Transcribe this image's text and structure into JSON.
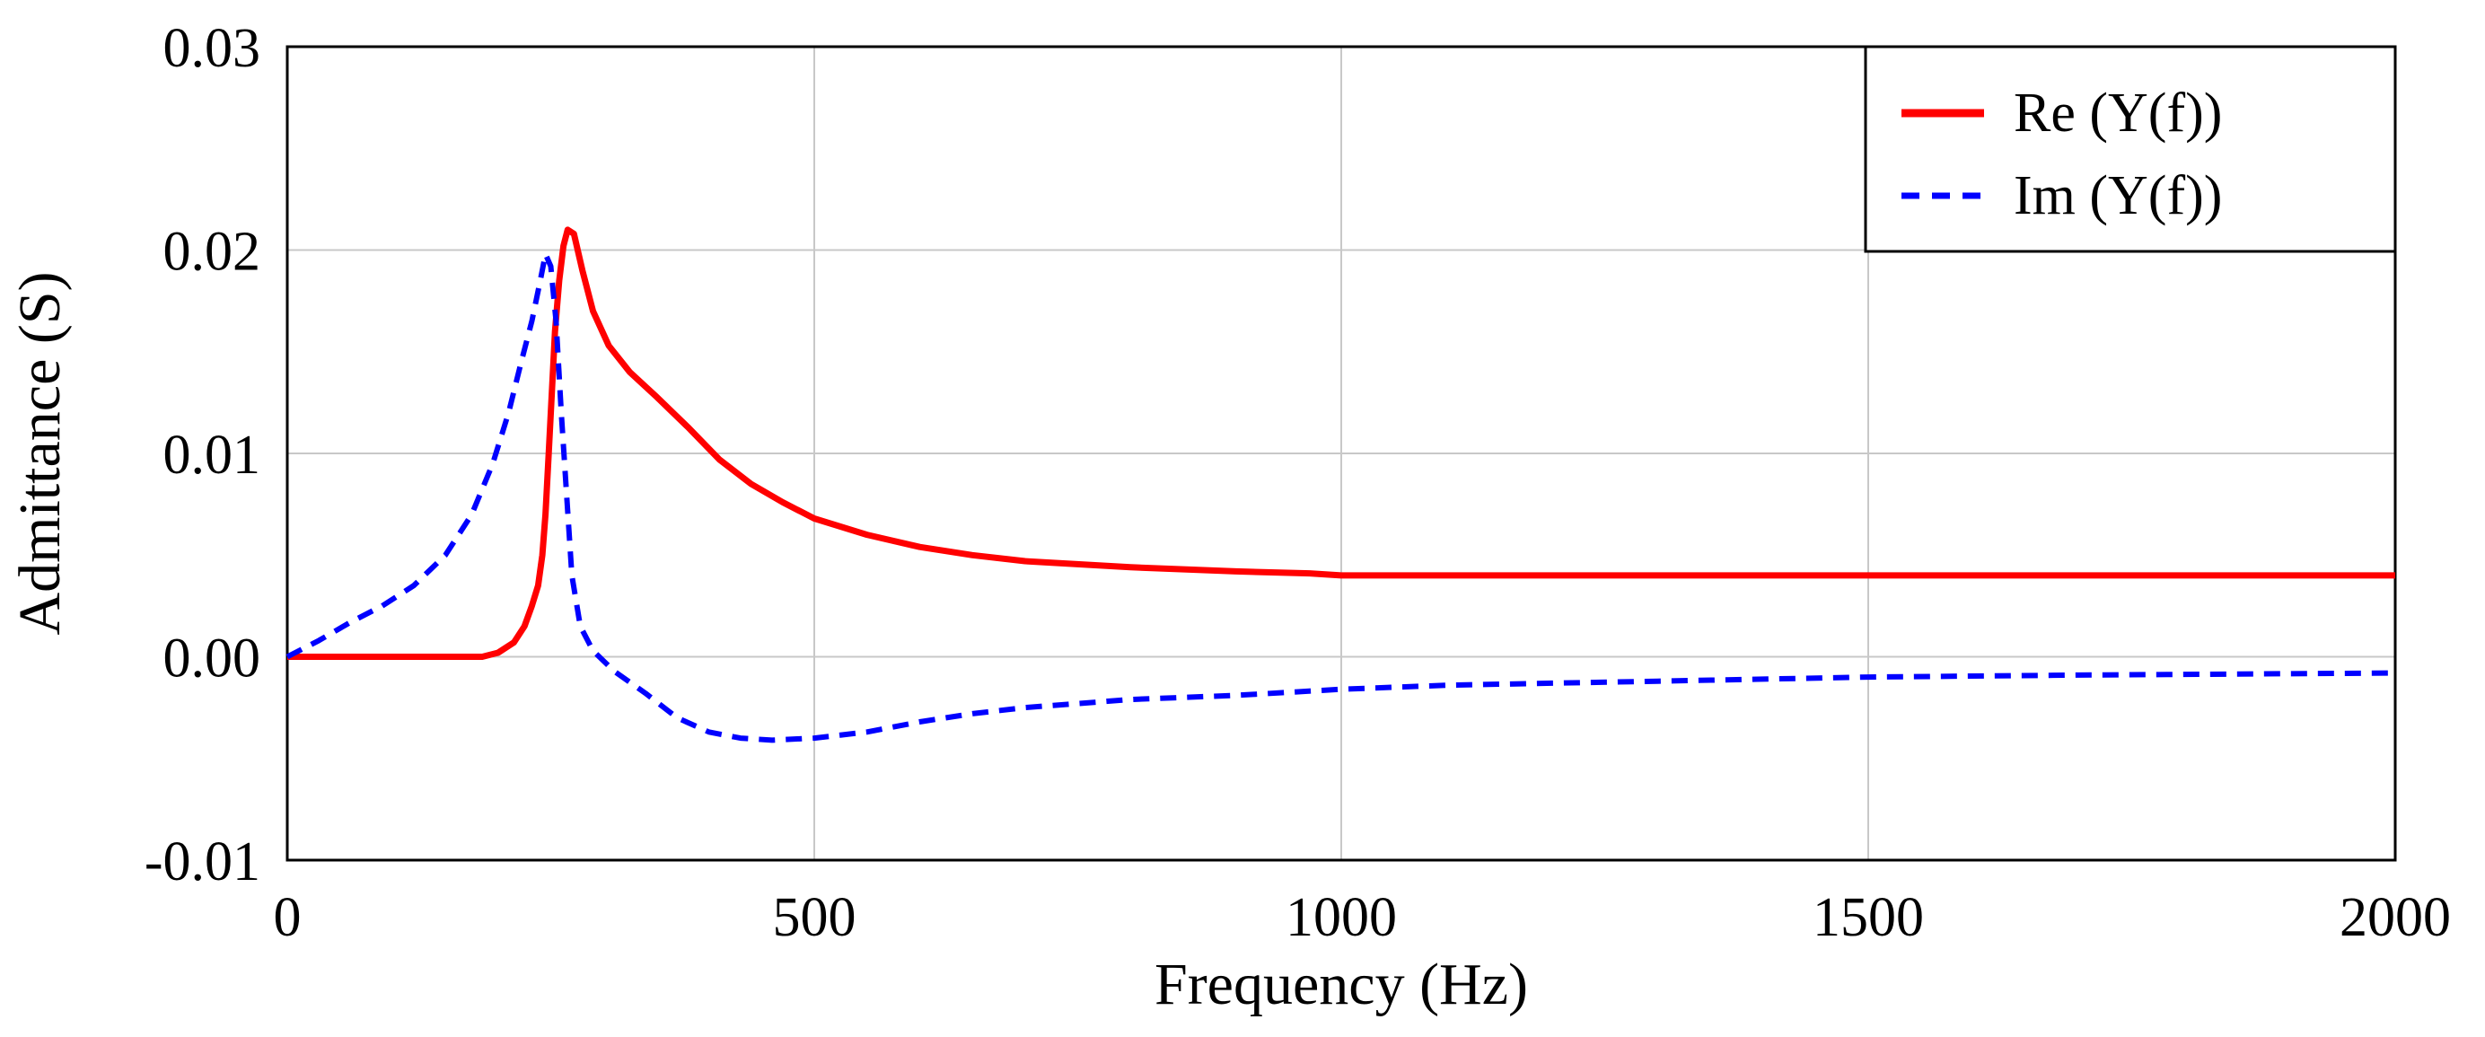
{
  "chart_data": {
    "type": "line",
    "title": "",
    "xlabel": "Frequency (Hz)",
    "ylabel": "Admittance (S)",
    "xlim": [
      0,
      2000
    ],
    "ylim": [
      -0.01,
      0.03
    ],
    "x_ticks": [
      0,
      500,
      1000,
      1500,
      2000
    ],
    "x_tick_labels": [
      "0",
      "500",
      "1000",
      "1500",
      "2000"
    ],
    "y_ticks": [
      -0.01,
      0.0,
      0.01,
      0.02,
      0.03
    ],
    "y_tick_labels": [
      "-0.01",
      "0.00",
      "0.01",
      "0.02",
      "0.03"
    ],
    "grid": true,
    "legend_position": "top-right",
    "series": [
      {
        "name": "Re (Y(f))",
        "color": "#ff0000",
        "style": "solid",
        "points": [
          [
            0,
            0.0
          ],
          [
            150,
            0.0
          ],
          [
            185,
            0.0
          ],
          [
            200,
            0.0002
          ],
          [
            215,
            0.0007
          ],
          [
            225,
            0.0015
          ],
          [
            232,
            0.0025
          ],
          [
            238,
            0.0035
          ],
          [
            242,
            0.005
          ],
          [
            245,
            0.007
          ],
          [
            248,
            0.01
          ],
          [
            251,
            0.013
          ],
          [
            254,
            0.016
          ],
          [
            258,
            0.0185
          ],
          [
            262,
            0.0202
          ],
          [
            266,
            0.021
          ],
          [
            272,
            0.0208
          ],
          [
            280,
            0.019
          ],
          [
            290,
            0.017
          ],
          [
            305,
            0.0153
          ],
          [
            325,
            0.014
          ],
          [
            350,
            0.0128
          ],
          [
            380,
            0.0113
          ],
          [
            410,
            0.0097
          ],
          [
            440,
            0.0085
          ],
          [
            470,
            0.0076
          ],
          [
            500,
            0.0068
          ],
          [
            550,
            0.006
          ],
          [
            600,
            0.0054
          ],
          [
            650,
            0.005
          ],
          [
            700,
            0.0047
          ],
          [
            800,
            0.0044
          ],
          [
            900,
            0.0042
          ],
          [
            970,
            0.0041
          ],
          [
            1000,
            0.004
          ],
          [
            1500,
            0.004
          ],
          [
            2000,
            0.004
          ]
        ]
      },
      {
        "name": "Im (Y(f))",
        "color": "#0000ff",
        "style": "dashed",
        "points": [
          [
            0,
            0.0
          ],
          [
            30,
            0.0008
          ],
          [
            60,
            0.0017
          ],
          [
            90,
            0.0025
          ],
          [
            120,
            0.0035
          ],
          [
            150,
            0.005
          ],
          [
            175,
            0.007
          ],
          [
            195,
            0.0095
          ],
          [
            210,
            0.012
          ],
          [
            222,
            0.0145
          ],
          [
            232,
            0.0165
          ],
          [
            240,
            0.0185
          ],
          [
            245,
            0.0198
          ],
          [
            250,
            0.0192
          ],
          [
            255,
            0.0165
          ],
          [
            260,
            0.012
          ],
          [
            265,
            0.008
          ],
          [
            270,
            0.004
          ],
          [
            278,
            0.0015
          ],
          [
            290,
            0.0003
          ],
          [
            310,
            -0.0007
          ],
          [
            340,
            -0.0018
          ],
          [
            370,
            -0.003
          ],
          [
            400,
            -0.0037
          ],
          [
            430,
            -0.004
          ],
          [
            460,
            -0.0041
          ],
          [
            500,
            -0.004
          ],
          [
            550,
            -0.0037
          ],
          [
            600,
            -0.0032
          ],
          [
            650,
            -0.0028
          ],
          [
            700,
            -0.0025
          ],
          [
            800,
            -0.0021
          ],
          [
            900,
            -0.0019
          ],
          [
            1000,
            -0.0016
          ],
          [
            1100,
            -0.0014
          ],
          [
            1200,
            -0.0013
          ],
          [
            1300,
            -0.0012
          ],
          [
            1400,
            -0.0011
          ],
          [
            1500,
            -0.001
          ],
          [
            1700,
            -0.0009
          ],
          [
            2000,
            -0.0008
          ]
        ]
      }
    ]
  }
}
